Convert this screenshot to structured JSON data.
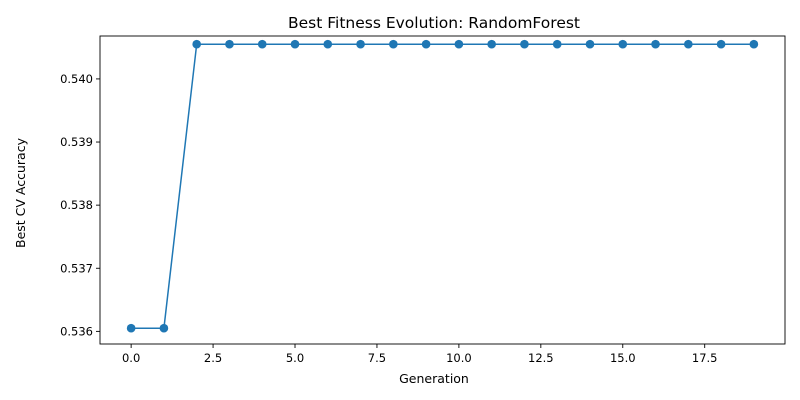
{
  "chart_data": {
    "type": "line",
    "title": "Best Fitness Evolution: RandomForest",
    "xlabel": "Generation",
    "ylabel": "Best CV Accuracy",
    "xlim": [
      -0.95,
      19.95
    ],
    "ylim": [
      0.5358,
      0.54068
    ],
    "xticks": [
      0.0,
      2.5,
      5.0,
      7.5,
      10.0,
      12.5,
      15.0,
      17.5
    ],
    "xtick_labels": [
      "0.0",
      "2.5",
      "5.0",
      "7.5",
      "10.0",
      "12.5",
      "15.0",
      "17.5"
    ],
    "yticks": [
      0.536,
      0.537,
      0.538,
      0.539,
      0.54
    ],
    "ytick_labels": [
      "0.536",
      "0.537",
      "0.538",
      "0.539",
      "0.540"
    ],
    "grid": false,
    "series": [
      {
        "color": "#1f77b4",
        "marker": "circle",
        "x": [
          0,
          1,
          2,
          3,
          4,
          5,
          6,
          7,
          8,
          9,
          10,
          11,
          12,
          13,
          14,
          15,
          16,
          17,
          18,
          19
        ],
        "y": [
          0.53605,
          0.53605,
          0.54055,
          0.54055,
          0.54055,
          0.54055,
          0.54055,
          0.54055,
          0.54055,
          0.54055,
          0.54055,
          0.54055,
          0.54055,
          0.54055,
          0.54055,
          0.54055,
          0.54055,
          0.54055,
          0.54055,
          0.54055
        ]
      }
    ]
  }
}
